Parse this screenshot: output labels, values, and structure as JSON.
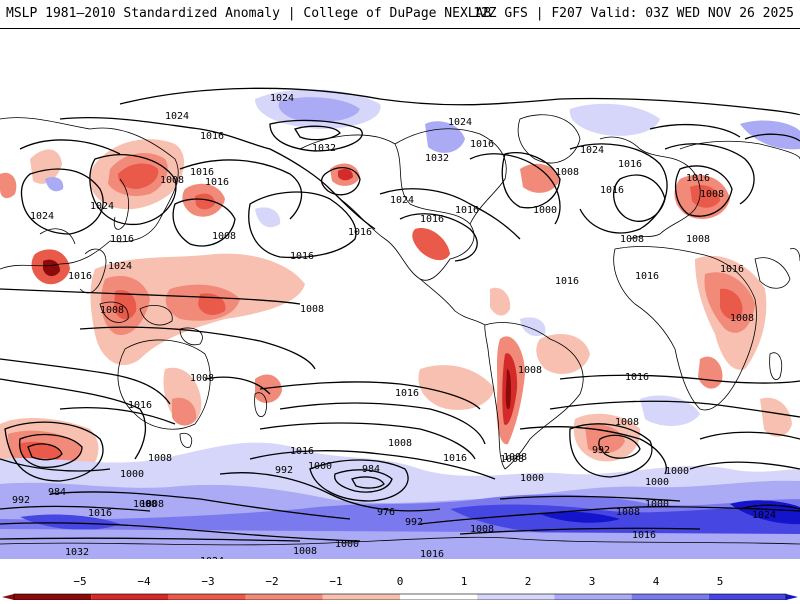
{
  "title": {
    "left": "MSLP 1981–2010 Standardized Anomaly | College of DuPage NEXLAB",
    "right": "12Z GFS | F207 Valid: 03Z WED NOV 26 2025"
  },
  "legend": {
    "ticks": [
      "−5",
      "−4",
      "−3",
      "−2",
      "−1",
      "0",
      "1",
      "2",
      "3",
      "4",
      "5"
    ],
    "colors": {
      "neg5": "#8b0a0a",
      "neg4": "#d42a2a",
      "neg3": "#ea5a4a",
      "neg2": "#f28a7a",
      "neg1": "#f8c0b0",
      "zero": "#ffffff",
      "pos1": "#d6d6fb",
      "pos2": "#aaaaf5",
      "pos3": "#7a7aee",
      "pos4": "#4646e2",
      "pos5": "#1414cc"
    }
  },
  "contours": {
    "labels": [
      "1024",
      "1024",
      "1016",
      "1032",
      "1024",
      "1016",
      "1032",
      "1008",
      "1016",
      "1024",
      "1024",
      "1016",
      "1016",
      "1016",
      "1008",
      "1016",
      "1008",
      "1016",
      "1008",
      "1008",
      "1024",
      "1016",
      "1000",
      "1024",
      "1016",
      "1016",
      "1016",
      "1008",
      "1008",
      "1016",
      "1024",
      "1016",
      "1008",
      "1008",
      "1008",
      "1008",
      "1008",
      "1016",
      "1016",
      "1016",
      "1008",
      "1000",
      "1016",
      "1008",
      "1008",
      "1016",
      "1016",
      "1016",
      "1000",
      "1008",
      "1008",
      "992",
      "1000",
      "984",
      "992",
      "984",
      "976",
      "992",
      "1008",
      "1000",
      "1008",
      "1016",
      "1000",
      "1008",
      "1000",
      "1000",
      "1024",
      "1016",
      "992",
      "1032",
      "1024",
      "1016",
      "1008"
    ]
  }
}
